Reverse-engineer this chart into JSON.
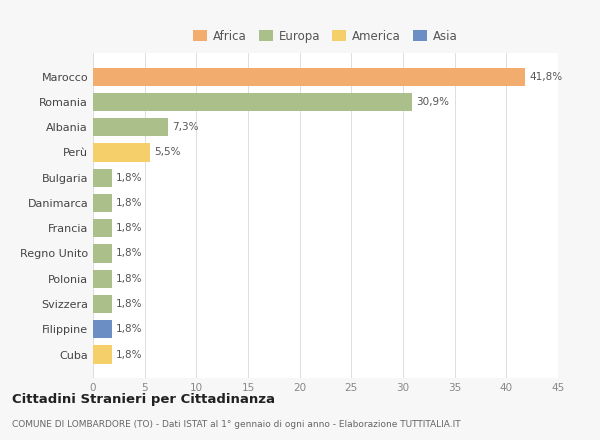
{
  "categories": [
    "Marocco",
    "Romania",
    "Albania",
    "Perù",
    "Bulgaria",
    "Danimarca",
    "Francia",
    "Regno Unito",
    "Polonia",
    "Svizzera",
    "Filippine",
    "Cuba"
  ],
  "values": [
    41.8,
    30.9,
    7.3,
    5.5,
    1.8,
    1.8,
    1.8,
    1.8,
    1.8,
    1.8,
    1.8,
    1.8
  ],
  "labels": [
    "41,8%",
    "30,9%",
    "7,3%",
    "5,5%",
    "1,8%",
    "1,8%",
    "1,8%",
    "1,8%",
    "1,8%",
    "1,8%",
    "1,8%",
    "1,8%"
  ],
  "colors": [
    "#F2AC6E",
    "#ABBF8A",
    "#ABBF8A",
    "#F5D06A",
    "#ABBF8A",
    "#ABBF8A",
    "#ABBF8A",
    "#ABBF8A",
    "#ABBF8A",
    "#ABBF8A",
    "#6B8FC4",
    "#F5D06A"
  ],
  "legend_labels": [
    "Africa",
    "Europa",
    "America",
    "Asia"
  ],
  "legend_colors": [
    "#F2AC6E",
    "#ABBF8A",
    "#F5D06A",
    "#6B8FC4"
  ],
  "title": "Cittadini Stranieri per Cittadinanza",
  "subtitle": "COMUNE DI LOMBARDORE (TO) - Dati ISTAT al 1° gennaio di ogni anno - Elaborazione TUTTITALIA.IT",
  "xlim": [
    0,
    45
  ],
  "xticks": [
    0,
    5,
    10,
    15,
    20,
    25,
    30,
    35,
    40,
    45
  ],
  "bg_color": "#f7f7f7",
  "plot_bg_color": "#ffffff"
}
